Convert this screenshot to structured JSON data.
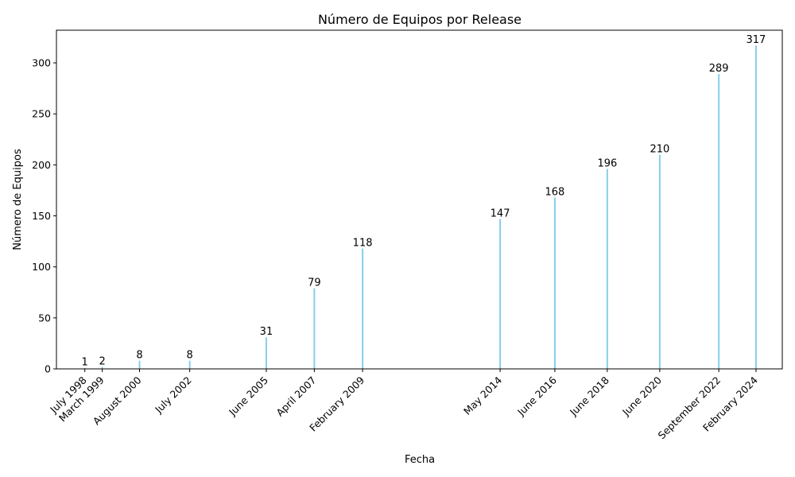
{
  "chart_data": {
    "type": "bar",
    "title": "Número de Equipos por Release",
    "xlabel": "Fecha",
    "ylabel": "Número de Equipos",
    "x_axis_type": "date",
    "bar_color": "#87ceeb",
    "grid": false,
    "legend": "none",
    "ylim": [
      0,
      332
    ],
    "y_ticks": [
      0,
      50,
      100,
      150,
      200,
      250,
      300
    ],
    "xlim": [
      "1997-06-01",
      "2025-02-01"
    ],
    "categories": [
      "July 1998",
      "March 1999",
      "August 2000",
      "July 2002",
      "June 2005",
      "April 2007",
      "February 2009",
      "May 2014",
      "June 2016",
      "June 2018",
      "June 2020",
      "September 2022",
      "February 2024"
    ],
    "dates": [
      "1998-07-01",
      "1999-03-01",
      "2000-08-01",
      "2002-07-01",
      "2005-06-01",
      "2007-04-01",
      "2009-02-01",
      "2014-05-01",
      "2016-06-01",
      "2018-06-01",
      "2020-06-01",
      "2022-09-01",
      "2024-02-01"
    ],
    "values": [
      1,
      2,
      8,
      8,
      31,
      79,
      118,
      147,
      168,
      196,
      210,
      289,
      317
    ]
  }
}
